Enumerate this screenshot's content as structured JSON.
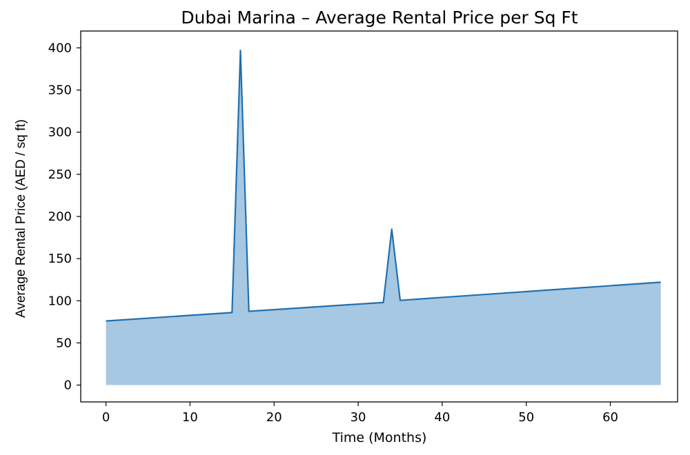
{
  "chart_data": {
    "type": "area",
    "title": "Dubai Marina – Average Rental Price per Sq Ft",
    "xlabel": "Time (Months)",
    "ylabel": "Average Rental Price (AED / sq ft)",
    "xlim": [
      -3,
      68
    ],
    "ylim": [
      -20,
      420
    ],
    "xticks": [
      0,
      10,
      20,
      30,
      40,
      50,
      60
    ],
    "yticks": [
      0,
      50,
      100,
      150,
      200,
      250,
      300,
      350,
      400
    ],
    "line_color": "#1f6fb0",
    "fill_color": "#a6c8e2",
    "grid": false,
    "x": [
      0,
      15,
      16,
      17,
      33,
      34,
      35,
      66
    ],
    "y": [
      76,
      86,
      397,
      87.5,
      98,
      185,
      100.5,
      122
    ]
  }
}
